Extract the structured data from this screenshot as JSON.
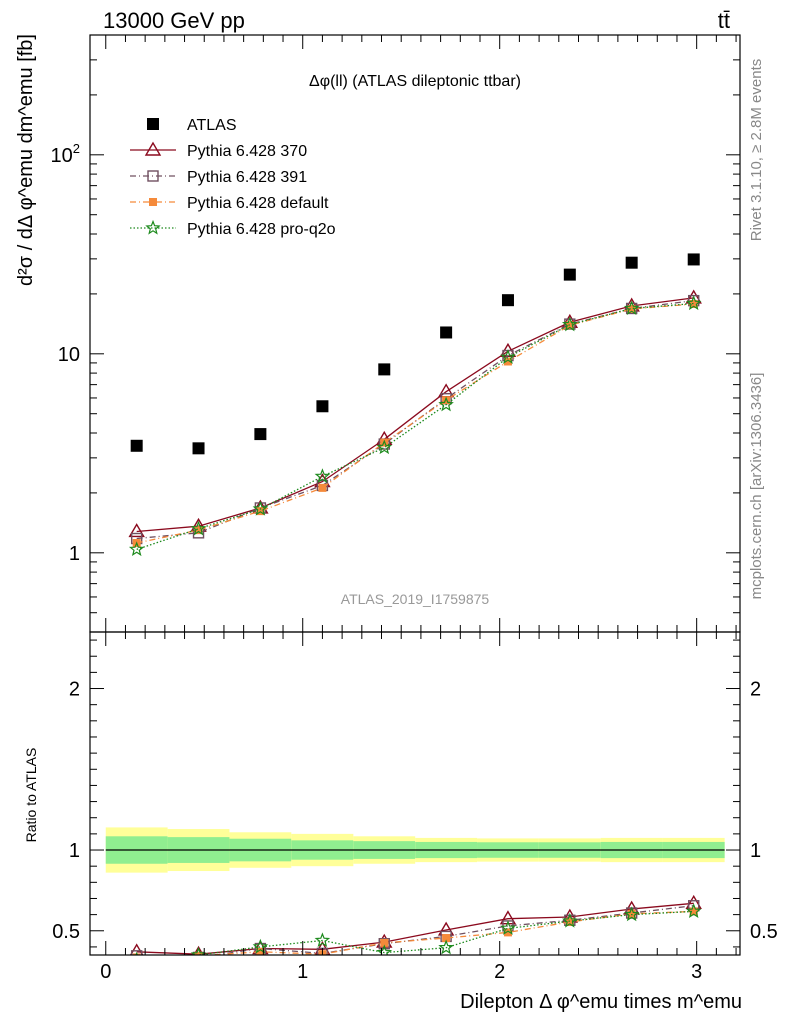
{
  "header": {
    "left": "13000 GeV pp",
    "right": "tt̄"
  },
  "side": {
    "rivet": "Rivet 3.1.10, ≥ 2.8M events",
    "mcplots": "mcplots.cern.ch [arXiv:1306.3436]"
  },
  "chart_data": [
    {
      "type": "scatter",
      "title": "Δφ(ll) (ATLAS dileptonic ttbar)",
      "watermark": "ATLAS_2019_I1759875",
      "ylabel": "d²σ / dΔ φ^emu dm^emu [fb]",
      "xlim": [
        -0.08,
        3.22
      ],
      "ylim": [
        0.4,
        400
      ],
      "yscale": "log",
      "yticks": [
        1,
        10,
        100
      ],
      "ytick_labels": [
        "1",
        "10",
        "10²"
      ],
      "legend_position": "top-left",
      "x": [
        0.157,
        0.471,
        0.785,
        1.1,
        1.414,
        1.728,
        2.042,
        2.356,
        2.67,
        2.985
      ],
      "series": [
        {
          "name": "ATLAS",
          "color": "#000000",
          "values": [
            3.45,
            3.35,
            3.95,
            5.45,
            8.35,
            12.8,
            18.6,
            25.0,
            28.7,
            29.8
          ]
        },
        {
          "name": "Pythia 6.428 370",
          "color": "#8b0a1e",
          "values": [
            1.28,
            1.36,
            1.68,
            2.28,
            3.72,
            6.45,
            10.3,
            14.4,
            17.4,
            19.1
          ]
        },
        {
          "name": "Pythia 6.428 391",
          "color": "#705060",
          "values": [
            1.18,
            1.26,
            1.68,
            2.18,
            3.52,
            5.95,
            9.8,
            14.1,
            16.9,
            18.5
          ]
        },
        {
          "name": "Pythia 6.428 default",
          "color": "#f58a3a",
          "values": [
            1.12,
            1.3,
            1.62,
            2.12,
            3.58,
            5.85,
            9.15,
            13.9,
            16.8,
            17.8
          ]
        },
        {
          "name": "Pythia 6.428 pro-q2o",
          "color": "#1d8a1d",
          "values": [
            1.04,
            1.32,
            1.66,
            2.42,
            3.38,
            5.55,
            9.6,
            14.0,
            16.9,
            17.9
          ]
        }
      ]
    },
    {
      "type": "line",
      "ylabel": "Ratio to ATLAS",
      "xlabel": "Dilepton Δ φ^emu times m^emu",
      "xlim": [
        -0.08,
        3.22
      ],
      "ylim": [
        0.35,
        2.35
      ],
      "yticks": [
        0.5,
        1,
        2
      ],
      "ytick_labels": [
        "0.5",
        "1",
        "2"
      ],
      "xticks": [
        0,
        1,
        2,
        3
      ],
      "xtick_labels": [
        "0",
        "1",
        "2",
        "3"
      ],
      "band_edges": [
        0,
        0.314,
        0.628,
        0.942,
        1.257,
        1.571,
        1.885,
        2.199,
        2.513,
        2.827,
        3.142
      ],
      "band_inner": [
        0.085,
        0.08,
        0.07,
        0.06,
        0.055,
        0.05,
        0.048,
        0.048,
        0.05,
        0.05
      ],
      "band_outer": [
        0.14,
        0.13,
        0.11,
        0.1,
        0.085,
        0.075,
        0.072,
        0.072,
        0.075,
        0.075
      ],
      "x": [
        0.157,
        0.471,
        0.785,
        1.1,
        1.414,
        1.728,
        2.042,
        2.356,
        2.67,
        2.985
      ],
      "series": [
        {
          "name": "Pythia 6.428 370",
          "color": "#8b0a1e",
          "values": [
            0.37,
            0.355,
            0.39,
            0.385,
            0.43,
            0.505,
            0.575,
            0.585,
            0.635,
            0.67
          ]
        },
        {
          "name": "Pythia 6.428 391",
          "color": "#705060",
          "values": [
            0.345,
            0.335,
            0.39,
            0.36,
            0.42,
            0.465,
            0.53,
            0.565,
            0.61,
            0.655
          ]
        },
        {
          "name": "Pythia 6.428 default",
          "color": "#f58a3a",
          "values": [
            0.335,
            0.345,
            0.37,
            0.355,
            0.425,
            0.455,
            0.49,
            0.555,
            0.605,
            0.62
          ]
        },
        {
          "name": "Pythia 6.428 pro-q2o",
          "color": "#1d8a1d",
          "values": [
            0.32,
            0.35,
            0.4,
            0.44,
            0.365,
            0.395,
            0.515,
            0.56,
            0.6,
            0.62
          ]
        }
      ]
    }
  ]
}
